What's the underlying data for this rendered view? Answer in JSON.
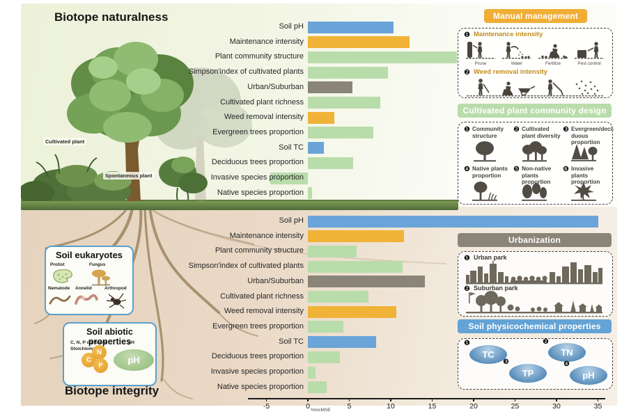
{
  "titles": {
    "top": "Biotope naturalness",
    "bottom": "Biotope integrity"
  },
  "illustration": {
    "cultivated_label": "Cultivated plant",
    "spontaneous_label": "Spontaneous plant"
  },
  "eukaryotes": {
    "title": "Soil eukaryotes",
    "items": [
      {
        "label": "Protist",
        "icon": "protist-icon"
      },
      {
        "label": "Fungus",
        "icon": "fungus-icon"
      },
      {
        "label": "Nematode",
        "icon": "nematode-icon"
      },
      {
        "label": "Annelid",
        "icon": "annelid-icon"
      },
      {
        "label": "Arthropod",
        "icon": "arthropod-icon"
      }
    ]
  },
  "abiotic": {
    "title": "Soil abiotic properties",
    "contents_line1": "C, N, P contents",
    "contents_line2": "Stoichiometry",
    "ph_heading": "pH",
    "circles": [
      "C",
      "N",
      "P"
    ],
    "ph_oval": "pH"
  },
  "axis": {
    "ticks": [
      -5,
      0,
      5,
      10,
      15,
      20,
      25,
      30,
      35
    ],
    "label": "%IncMSE"
  },
  "chart_data": [
    {
      "type": "bar",
      "orientation": "horizontal",
      "title": "Biotope naturalness",
      "xlabel": "%IncMSE",
      "xlim": [
        -5,
        35
      ],
      "categories": [
        "Soil pH",
        "Maintenance intensity",
        "Plant community structure",
        "Simpson'index of cultivated plants",
        "Urban/Suburban",
        "Cultivated plant richness",
        "Weed removal intensity",
        "Evergreen trees proportion",
        "Soil TC",
        "Deciduous trees proportion",
        "Invasive species proportion",
        "Native species proportion"
      ],
      "values": [
        10.3,
        12.3,
        18.0,
        9.7,
        5.4,
        8.7,
        3.2,
        7.9,
        1.9,
        5.5,
        -4.5,
        0.5
      ],
      "color_groups": [
        "soil",
        "management",
        "plant",
        "plant",
        "urban",
        "plant",
        "management",
        "plant",
        "soil",
        "plant",
        "plant",
        "plant"
      ]
    },
    {
      "type": "bar",
      "orientation": "horizontal",
      "title": "Biotope integrity",
      "xlabel": "%IncMSE",
      "xlim": [
        -5,
        35
      ],
      "categories": [
        "Soil pH",
        "Maintenance intensity",
        "Plant community structure",
        "Simpson'index of cultivated plants",
        "Urban/Suburban",
        "Cultivated plant richness",
        "Weed removal intensity",
        "Evergreen trees proportion",
        "Soil TC",
        "Deciduous trees proportion",
        "Invasive species proportion",
        "Native species proportion"
      ],
      "values": [
        35.0,
        11.6,
        5.9,
        11.4,
        14.1,
        7.3,
        10.7,
        4.3,
        8.2,
        3.9,
        0.9,
        2.3
      ],
      "color_groups": [
        "soil",
        "management",
        "plant",
        "plant",
        "urban",
        "plant",
        "management",
        "plant",
        "soil",
        "plant",
        "plant",
        "plant"
      ]
    }
  ],
  "panels": {
    "manual": {
      "title": "Manual management",
      "items": [
        {
          "num": "❶",
          "label": "Maintenance intensity",
          "sublabels": [
            "Prune",
            "Water",
            "Fertilize",
            "Pest control"
          ]
        },
        {
          "num": "❷",
          "label": "Weed removal intensity",
          "sublabels": []
        }
      ]
    },
    "design": {
      "title": "Cultivated plant community design",
      "items": [
        {
          "num": "❶",
          "label": "Community structure",
          "icon": "tree-single-icon"
        },
        {
          "num": "❷",
          "label": "Cultivated plant diversity",
          "icon": "tree-cluster-icon"
        },
        {
          "num": "❸",
          "label": "Evergreen/deci- duous proportion",
          "icon": "tree-evergreen-icon"
        },
        {
          "num": "❹",
          "label": "Native plants proportion",
          "icon": "tree-native-icon"
        },
        {
          "num": "❺",
          "label": "Non-native plants proportion",
          "icon": "plants-nonnative-icon"
        },
        {
          "num": "❻",
          "label": "Invasive plants proportion",
          "icon": "plant-invasive-icon"
        }
      ]
    },
    "urbanization": {
      "title": "Urbanization",
      "items": [
        {
          "num": "❶",
          "label": "Urban park",
          "icon": "skyline-urban-icon"
        },
        {
          "num": "❷",
          "label": "Suburban park",
          "icon": "skyline-suburban-icon"
        }
      ]
    },
    "soil_properties": {
      "title": "Soil physicochemical properties",
      "items": [
        {
          "num": "❶",
          "label": "TC"
        },
        {
          "num": "❷",
          "label": "TN"
        },
        {
          "num": "❸",
          "label": "TP"
        },
        {
          "num": "❹",
          "label": "pH"
        }
      ]
    }
  },
  "colors": {
    "bar_soil": "#6aa4d8",
    "bar_management": "#f1b337",
    "bar_plant": "#b9dcab",
    "bar_urban": "#8b8478",
    "header_manual": "#f0ae35",
    "header_design": "#b9dcab",
    "header_urban": "#8b8478",
    "header_soil": "#63a3d6"
  }
}
